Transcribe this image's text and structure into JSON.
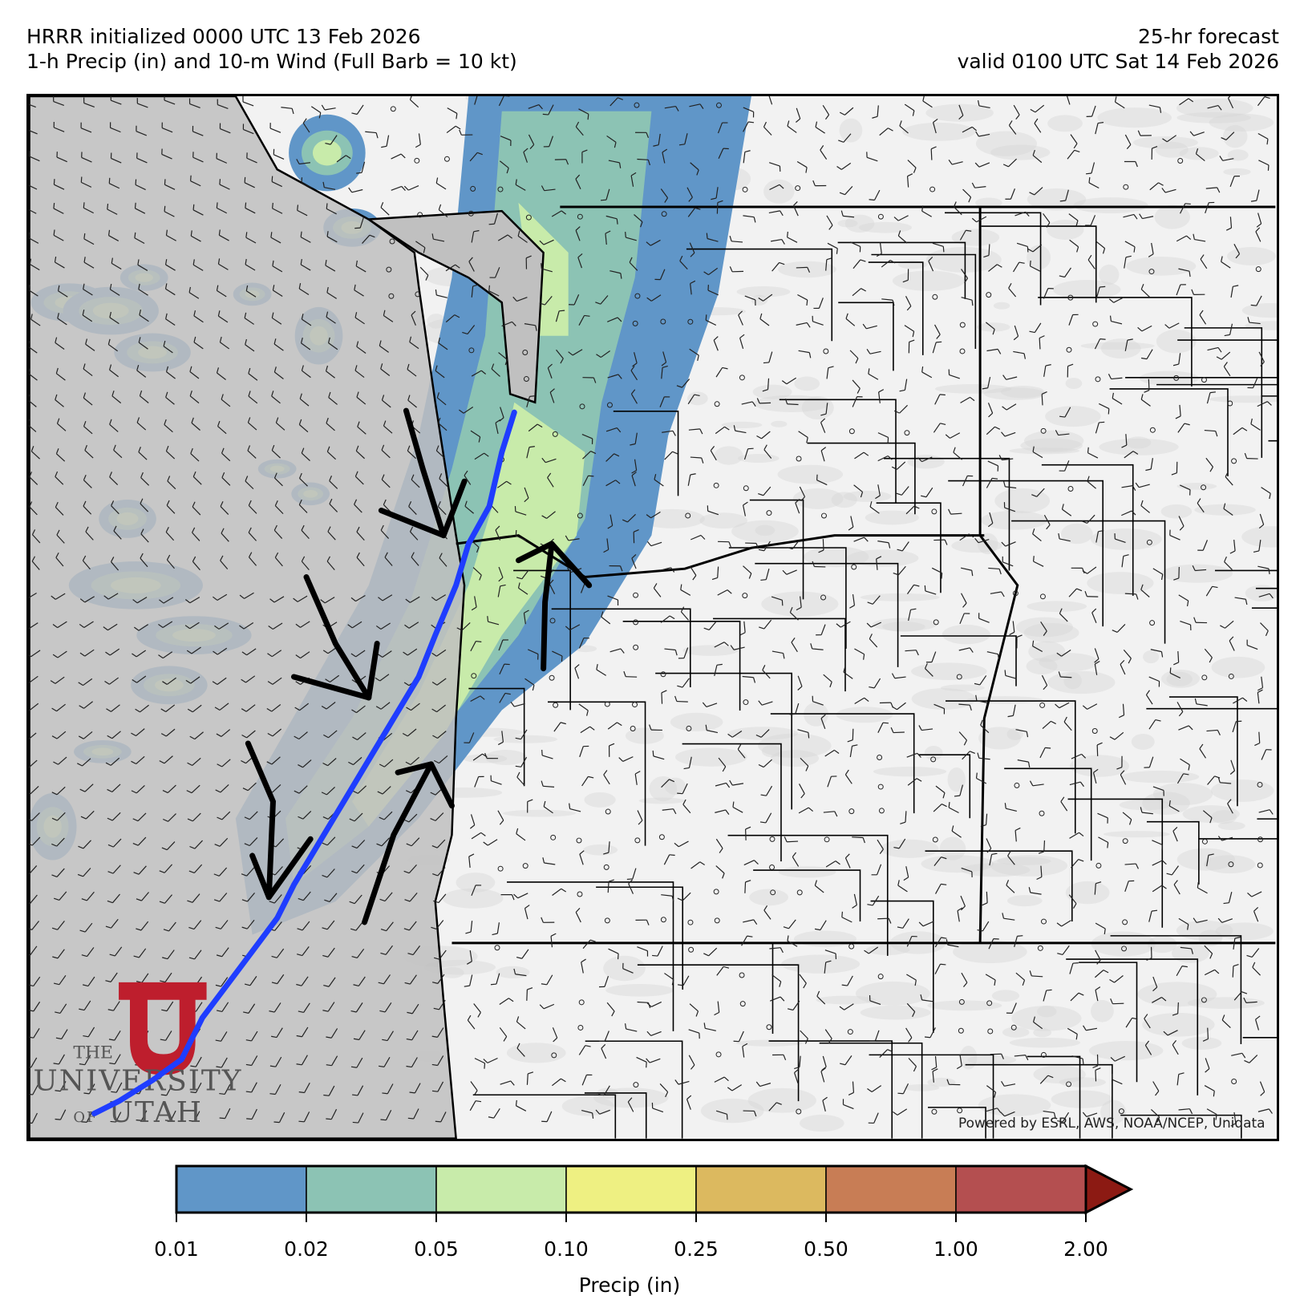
{
  "header": {
    "left_line1": "HRRR initialized 0000 UTC 13 Feb 2026",
    "left_line2": "1-h Precip (in) and 10-m Wind (Full Barb = 10 kt)",
    "right_line1": "25-hr forecast",
    "right_line2": "valid 0100 UTC Sat 14 Feb 2026"
  },
  "map": {
    "credit": "Powered by ESRL, AWS, NOAA/NCEP, Unidata",
    "logo": "THE UNIVERSITY OF UTAH",
    "colors": {
      "ocean": "#c0c0c0",
      "land": "#f2f2f2",
      "front_line": "#1f3dff",
      "annotation_arrows": "#000000",
      "logo_red": "#be1e2d"
    },
    "annotations": [
      "blue front line along coast",
      "black wind-convergence arrows"
    ]
  },
  "colorbar": {
    "label": "Precip (in)",
    "ticks": [
      "0.01",
      "0.02",
      "0.05",
      "0.10",
      "0.25",
      "0.50",
      "1.00",
      "2.00"
    ],
    "colors": [
      "#6096c8",
      "#8cc3b4",
      "#c8ebaa",
      "#eef082",
      "#dcb95f",
      "#c87d55",
      "#b44f50",
      "#8c1a13"
    ],
    "extend": "max"
  }
}
